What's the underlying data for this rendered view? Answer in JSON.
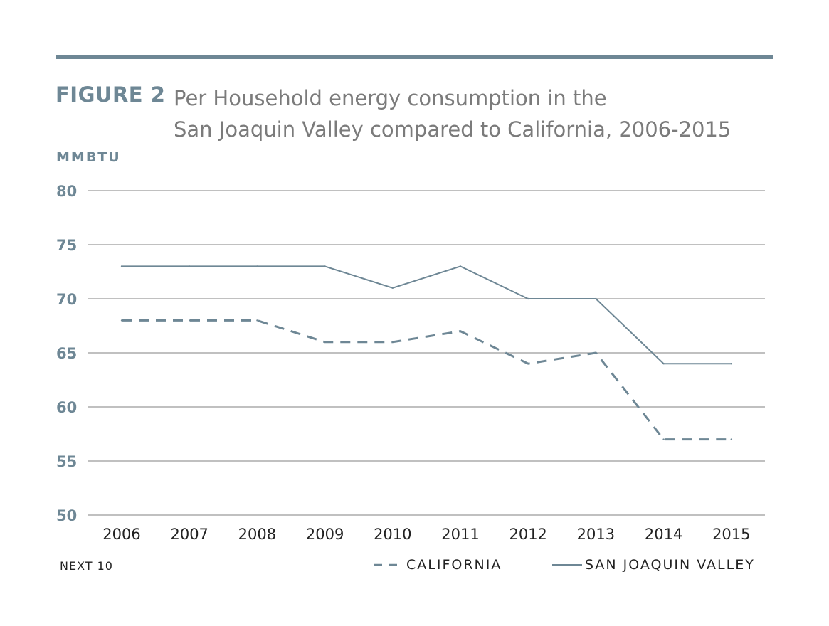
{
  "figure": {
    "label": "FIGURE 2",
    "title_line1": "Per Household energy consumption in the",
    "title_line2": "San Joaquin Valley compared to California, 2006-2015",
    "unit": "MMBTU",
    "source": "NEXT 10"
  },
  "colors": {
    "series": "#6e8795",
    "grid": "#9a9a9a",
    "axis_text": "#222222"
  },
  "chart_data": {
    "type": "line",
    "title": "Per Household energy consumption in the San Joaquin Valley compared to California, 2006-2015",
    "ylabel": "MMBTU",
    "xlabel": "",
    "categories": [
      "2006",
      "2007",
      "2008",
      "2009",
      "2010",
      "2011",
      "2012",
      "2013",
      "2014",
      "2015"
    ],
    "yticks": [
      50,
      55,
      60,
      65,
      70,
      75,
      80
    ],
    "ylim": [
      50,
      80
    ],
    "grid": true,
    "legend_position": "bottom-right",
    "series": [
      {
        "name": "CALIFORNIA",
        "style": "dashed",
        "values": [
          68,
          68,
          68,
          66,
          66,
          67,
          64,
          65,
          57,
          57
        ]
      },
      {
        "name": "SAN JOAQUIN VALLEY",
        "style": "solid",
        "values": [
          73,
          73,
          73,
          73,
          71,
          73,
          70,
          70,
          64,
          64
        ]
      }
    ]
  }
}
